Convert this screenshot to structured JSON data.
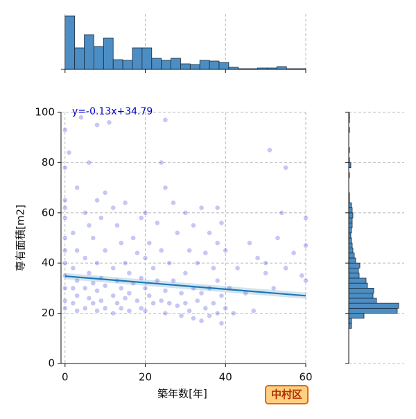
{
  "chart_data": [
    {
      "type": "scatter",
      "xlabel": "築年数[年]",
      "ylabel": "専有面積[m2]",
      "color": "#0000cd",
      "grid": true,
      "xlim": [
        -1,
        60
      ],
      "ylim": [
        0,
        100
      ],
      "xticks": [
        0,
        20,
        40,
        60
      ],
      "yticks": [
        0,
        20,
        40,
        60,
        80,
        100
      ],
      "x": [
        0,
        0,
        0,
        0,
        0,
        0,
        0,
        0,
        0,
        0,
        0,
        0,
        1,
        2,
        2,
        2,
        2,
        3,
        3,
        3,
        3,
        3,
        4,
        5,
        5,
        5,
        5,
        6,
        6,
        6,
        6,
        7,
        7,
        7,
        8,
        8,
        8,
        8,
        8,
        9,
        9,
        9,
        10,
        10,
        10,
        10,
        11,
        12,
        12,
        12,
        12,
        13,
        13,
        13,
        14,
        14,
        14,
        15,
        15,
        15,
        16,
        16,
        16,
        17,
        17,
        18,
        18,
        19,
        19,
        19,
        20,
        20,
        20,
        20,
        21,
        21,
        22,
        22,
        23,
        23,
        24,
        24,
        24,
        25,
        25,
        25,
        25,
        26,
        26,
        27,
        27,
        28,
        28,
        29,
        29,
        30,
        30,
        30,
        31,
        31,
        32,
        32,
        32,
        33,
        33,
        34,
        34,
        34,
        35,
        35,
        36,
        36,
        36,
        37,
        37,
        38,
        38,
        38,
        38,
        39,
        39,
        39,
        40,
        40,
        41,
        42,
        43,
        45,
        46,
        47,
        48,
        50,
        50,
        51,
        52,
        53,
        54,
        55,
        55,
        57,
        59,
        60,
        60,
        60
      ],
      "y": [
        93,
        78,
        65,
        62,
        58,
        50,
        45,
        40,
        35,
        30,
        25,
        22,
        84,
        52,
        38,
        30,
        24,
        70,
        45,
        33,
        27,
        21,
        98,
        60,
        42,
        30,
        22,
        80,
        55,
        36,
        26,
        50,
        32,
        24,
        95,
        65,
        40,
        29,
        21,
        58,
        34,
        25,
        68,
        45,
        31,
        22,
        96,
        62,
        38,
        27,
        20,
        55,
        33,
        24,
        48,
        30,
        22,
        64,
        40,
        26,
        36,
        28,
        21,
        50,
        32,
        44,
        25,
        58,
        34,
        22,
        60,
        42,
        30,
        21,
        48,
        27,
        38,
        24,
        56,
        33,
        80,
        45,
        25,
        97,
        70,
        29,
        20,
        40,
        24,
        64,
        33,
        52,
        23,
        28,
        19,
        60,
        36,
        24,
        45,
        21,
        55,
        30,
        18,
        40,
        25,
        62,
        28,
        17,
        44,
        22,
        52,
        30,
        19,
        38,
        24,
        62,
        48,
        33,
        20,
        56,
        27,
        16,
        45,
        22,
        30,
        20,
        38,
        28,
        48,
        21,
        42,
        40,
        36,
        85,
        30,
        50,
        60,
        78,
        38,
        44,
        35,
        58,
        47,
        33
      ],
      "regression": {
        "slope": -0.13,
        "intercept": 34.79,
        "label": "y=-0.13x+34.79",
        "color": "#1f77b4",
        "label_color": "#0000cd"
      }
    },
    {
      "type": "histogram",
      "orientation": "vertical",
      "color": "#4c8ec4",
      "grid": true,
      "bins": [
        0,
        2.4,
        4.8,
        7.2,
        9.6,
        12,
        14.4,
        16.8,
        19.2,
        21.6,
        24,
        26.4,
        28.8,
        31.2,
        33.6,
        36,
        38.4,
        40.8,
        43.2,
        45.6,
        48,
        50.4,
        52.8,
        55.2,
        57.6,
        60
      ],
      "counts": [
        77,
        31,
        50,
        33,
        45,
        14,
        13,
        31,
        31,
        16,
        13,
        16,
        8,
        7,
        13,
        12,
        10,
        3,
        1,
        1,
        2,
        2,
        4,
        1,
        1
      ],
      "xlim": [
        -1,
        60
      ],
      "ylim": [
        0,
        80
      ],
      "xticks": [
        0,
        20,
        40,
        60
      ]
    },
    {
      "type": "histogram",
      "orientation": "horizontal",
      "color": "#4c8ec4",
      "grid": true,
      "bins": [
        14,
        16,
        18,
        20,
        22,
        24,
        26,
        28,
        30,
        32,
        34,
        36,
        38,
        40,
        42,
        44,
        46,
        48,
        50,
        52,
        54,
        56,
        58,
        60,
        62,
        64,
        66,
        68,
        70,
        72,
        74,
        76,
        78,
        80,
        82,
        84,
        86,
        88,
        90,
        92,
        94,
        96,
        98,
        100
      ],
      "counts": [
        4,
        4,
        22,
        70,
        72,
        40,
        35,
        36,
        27,
        25,
        15,
        14,
        16,
        10,
        8,
        6,
        5,
        4,
        3,
        4,
        5,
        5,
        6,
        5,
        4,
        1,
        1,
        0,
        0,
        0,
        1,
        0,
        3,
        1,
        0,
        1,
        0,
        0,
        0,
        1,
        0,
        1,
        1
      ],
      "xlim": [
        0,
        80
      ],
      "ylim": [
        0,
        100
      ],
      "yticks": [
        0,
        20,
        40,
        60,
        80,
        100
      ]
    }
  ],
  "badge": "中村区"
}
